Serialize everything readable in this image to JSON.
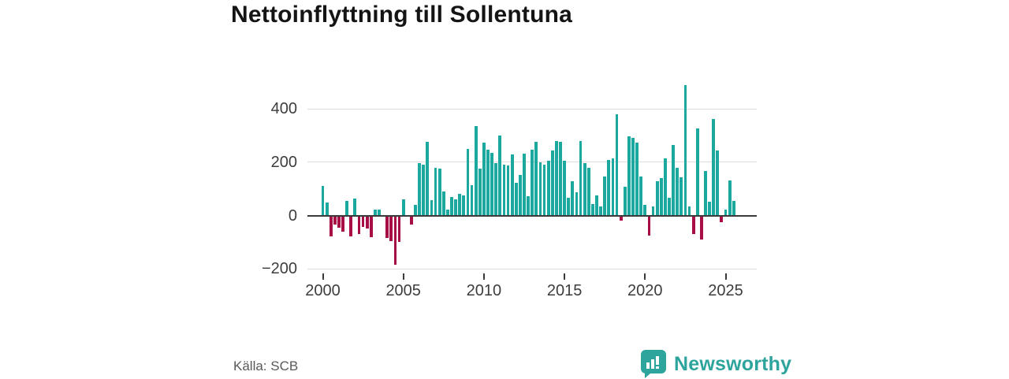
{
  "title": "Nettoinflyttning till Sollentuna",
  "source": "Källa: SCB",
  "logo": {
    "text": "Newsworthy",
    "icon": "bar-chart-speech-bubble"
  },
  "colors": {
    "positive_bar": "#1ba99f",
    "negative_bar": "#a60e45",
    "grid": "#dcdcdc",
    "zero_line": "#3a3a3a",
    "logo_teal": "#2da49c"
  },
  "chart_data": {
    "type": "bar",
    "title": "Nettoinflyttning till Sollentuna",
    "xlabel": "",
    "ylabel": "",
    "ylim": [
      -210,
      500
    ],
    "grid": true,
    "yticks": [
      {
        "value": 400,
        "label": "400"
      },
      {
        "value": 200,
        "label": "200"
      },
      {
        "value": 0,
        "label": "0"
      },
      {
        "value": -200,
        "label": "−200"
      }
    ],
    "xticks": [
      "2000",
      "2005",
      "2010",
      "2015",
      "2020",
      "2025"
    ],
    "frequency": "quarterly",
    "categories": [
      "2000 Q1",
      "2000 Q2",
      "2000 Q3",
      "2000 Q4",
      "2001 Q1",
      "2001 Q2",
      "2001 Q3",
      "2001 Q4",
      "2002 Q1",
      "2002 Q2",
      "2002 Q3",
      "2002 Q4",
      "2003 Q1",
      "2003 Q2",
      "2003 Q3",
      "2003 Q4",
      "2004 Q1",
      "2004 Q2",
      "2004 Q3",
      "2004 Q4",
      "2005 Q1",
      "2005 Q2",
      "2005 Q3",
      "2005 Q4",
      "2006 Q1",
      "2006 Q2",
      "2006 Q3",
      "2006 Q4",
      "2007 Q1",
      "2007 Q2",
      "2007 Q3",
      "2007 Q4",
      "2008 Q1",
      "2008 Q2",
      "2008 Q3",
      "2008 Q4",
      "2009 Q1",
      "2009 Q2",
      "2009 Q3",
      "2009 Q4",
      "2010 Q1",
      "2010 Q2",
      "2010 Q3",
      "2010 Q4",
      "2011 Q1",
      "2011 Q2",
      "2011 Q3",
      "2011 Q4",
      "2012 Q1",
      "2012 Q2",
      "2012 Q3",
      "2012 Q4",
      "2013 Q1",
      "2013 Q2",
      "2013 Q3",
      "2013 Q4",
      "2014 Q1",
      "2014 Q2",
      "2014 Q3",
      "2014 Q4",
      "2015 Q1",
      "2015 Q2",
      "2015 Q3",
      "2015 Q4",
      "2016 Q1",
      "2016 Q2",
      "2016 Q3",
      "2016 Q4",
      "2017 Q1",
      "2017 Q2",
      "2017 Q3",
      "2017 Q4",
      "2018 Q1",
      "2018 Q2",
      "2018 Q3",
      "2018 Q4",
      "2019 Q1",
      "2019 Q2",
      "2019 Q3",
      "2019 Q4",
      "2020 Q1",
      "2020 Q2",
      "2020 Q3",
      "2020 Q4",
      "2021 Q1",
      "2021 Q2",
      "2021 Q3",
      "2021 Q4",
      "2022 Q1",
      "2022 Q2",
      "2022 Q3",
      "2022 Q4",
      "2023 Q1",
      "2023 Q2",
      "2023 Q3",
      "2023 Q4",
      "2024 Q1",
      "2024 Q2",
      "2024 Q3",
      "2024 Q4",
      "2025 Q1",
      "2025 Q2",
      "2025 Q3"
    ],
    "values": [
      110,
      50,
      -78,
      -35,
      -45,
      -62,
      55,
      -78,
      63,
      -70,
      -42,
      -48,
      -82,
      22,
      22,
      0,
      -85,
      -95,
      -185,
      -100,
      62,
      0,
      -33,
      40,
      195,
      190,
      275,
      57,
      178,
      177,
      89,
      23,
      69,
      62,
      82,
      74,
      249,
      114,
      334,
      175,
      272,
      247,
      235,
      197,
      300,
      192,
      188,
      228,
      124,
      151,
      233,
      72,
      247,
      275,
      198,
      191,
      206,
      243,
      279,
      275,
      205,
      67,
      129,
      86,
      280,
      197,
      178,
      44,
      75,
      35,
      145,
      209,
      215,
      379,
      -18,
      108,
      297,
      290,
      274,
      146,
      41,
      -74,
      33,
      128,
      140,
      215,
      66,
      263,
      180,
      143,
      488,
      34,
      -69,
      327,
      -90,
      166,
      52,
      363,
      244,
      -25,
      22,
      130,
      54
    ]
  }
}
